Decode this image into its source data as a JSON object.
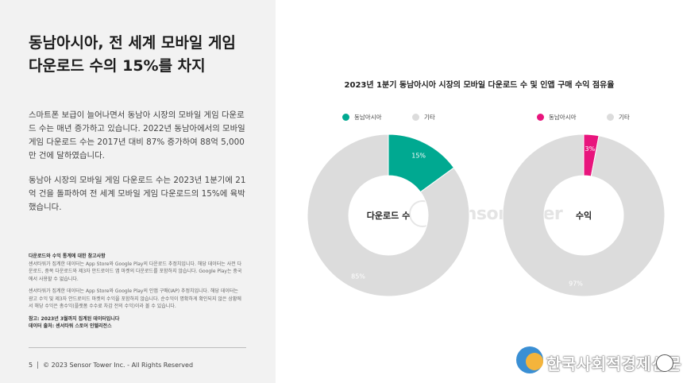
{
  "left": {
    "title_lines": [
      "동남아시아, 전 세계 모바일 게임",
      "다운로드 수의 15%를 차지"
    ],
    "paragraphs": [
      "스마트폰 보급이 늘어나면서 동남아 시장의 모바일 게임 다운로드 수는 매년 증가하고 있습니다. 2022년 동남아에서의 모바일 게임 다운로드 수는 2017년 대비 87% 증가하여 88억 5,000만 건에 달하였습니다.",
      "동남아 시장의 모바일 게임 다운로드 수는 2023년 1분기에 21억 건을 돌파하여 전 세계 모바일 게임 다운로드의 15%에 육박했습니다."
    ],
    "notes_heading": "다운로드와 수익 통계에 대한 참고사항",
    "notes": [
      "센서타워가 집계한 데이터는 App Store와 Google Play의 다운로드 추정치입니다. 해당 데이터는 사전 다운로드, 중복 다운로드와 제3자 안드로이드 앱 마켓의 다운로드를 포함하지 않습니다. Google Play는 중국에서 사용할 수 없습니다.",
      "센서타워가 집계한 데이터는 App Store와 Google Play의 인앱 구매(IAP) 추정치입니다. 해당 데이터는 광고 수익 및 제3자 안드로이드 마켓의 수익을 포함하지 않습니다. 순수익이 명확하게 확인되지 않은 상황에서 해당 수익은 총수익(플랫폼 수수료 차감 전의 수익)이라 볼 수 있습니다."
    ],
    "ref_note": "참고: 2023년 3월까지 집계된 데이터입니다",
    "source_note": "데이터 출처: 센서타워 스토어 인텔리전스",
    "footer_page": "5",
    "footer_copyright": "© 2023 Sensor Tower Inc. - All Rights Reserved"
  },
  "watermark": "SensorTower",
  "logo_text": "한국사회적경제신문",
  "colors": {
    "downloads_accent": "#00a991",
    "revenue_accent": "#e8157d",
    "other": "#dcdcdc",
    "panel": "#f2f2f2"
  },
  "chart_data": {
    "title": "2023년 1분기 동남아시아 시장의 모바일 다운로드 수 및 인앱 구매 수익 점유율",
    "charts": [
      {
        "type": "pie",
        "center_label": "다운로드 수",
        "slices": [
          {
            "name": "동남아시아",
            "value": 15,
            "label": "15%",
            "color": "#00a991"
          },
          {
            "name": "기타",
            "value": 85,
            "label": "85%",
            "color": "#dcdcdc"
          }
        ]
      },
      {
        "type": "pie",
        "center_label": "수익",
        "slices": [
          {
            "name": "동남아시아",
            "value": 3,
            "label": "3%",
            "color": "#e8157d"
          },
          {
            "name": "기타",
            "value": 97,
            "label": "97%",
            "color": "#dcdcdc"
          }
        ]
      }
    ]
  }
}
